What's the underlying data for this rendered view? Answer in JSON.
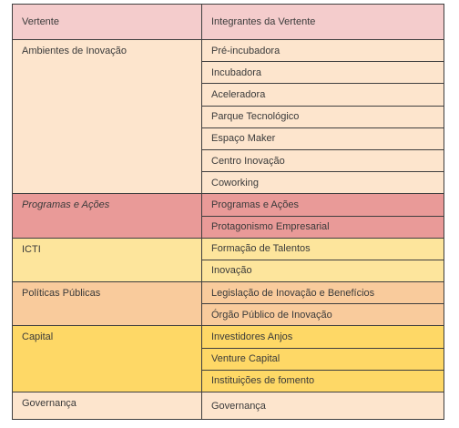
{
  "header": {
    "col1": "Vertente",
    "col2": "Integrantes da Vertente",
    "color": "#f4cccc"
  },
  "groups": [
    {
      "vertente": "Ambientes de Inovação",
      "italic": false,
      "color": "#fde5cd",
      "items": [
        "Pré-incubadora",
        "Incubadora",
        "Aceleradora",
        "Parque Tecnológico",
        "Espaço Maker",
        "Centro Inovação",
        "Coworking"
      ]
    },
    {
      "vertente": "Programas e Ações",
      "italic": true,
      "color": "#e99a98",
      "items": [
        "Programas e Ações",
        "Protagonismo Empresarial"
      ]
    },
    {
      "vertente": "ICTI",
      "italic": false,
      "color": "#fde59c",
      "items": [
        "Formação de Talentos",
        "Inovação"
      ]
    },
    {
      "vertente": "Políticas Públicas",
      "italic": false,
      "color": "#f9cb9c",
      "items": [
        "Legislação de Inovação e Benefícios",
        "Órgão Público de Inovação"
      ]
    },
    {
      "vertente": "Capital",
      "italic": false,
      "color": "#fed866",
      "items": [
        "Investidores Anjos",
        "Venture Capital",
        "Instituições de fomento"
      ]
    },
    {
      "vertente": "Governança",
      "italic": false,
      "color": "#fde5cd",
      "items": [
        "Governança"
      ]
    }
  ]
}
